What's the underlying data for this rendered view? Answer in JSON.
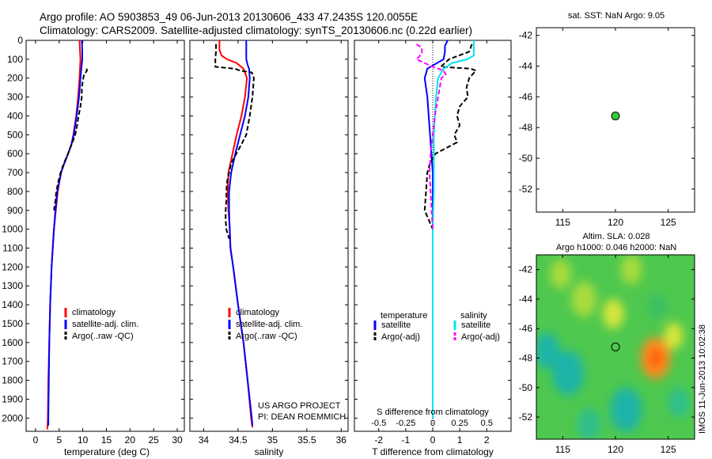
{
  "header": {
    "line1": "Argo profile: AO 5903853_49 06-Jun-2013 20130606_433 47.2435S 120.0055E",
    "line2": "Climatology: CARS2009. Satellite-adjusted climatology: synTS_20130606.nc (0.22d earlier)"
  },
  "colors": {
    "climatology": "#ff0000",
    "satellite": "#0000ff",
    "argo": "#000000",
    "sal_satellite": "#00e5ee",
    "sal_argo": "#ff00ff",
    "float_marker": "#33cc33"
  },
  "depth_axis": {
    "ticks": [
      "0",
      "100",
      "200",
      "300",
      "400",
      "500",
      "600",
      "700",
      "800",
      "900",
      "1000",
      "1100",
      "1200",
      "1300",
      "1400",
      "1500",
      "1600",
      "1700",
      "1800",
      "1900",
      "2000"
    ]
  },
  "chart_data": [
    {
      "type": "line",
      "id": "temperature",
      "xlabel": "temperature (deg C)",
      "xlim": [
        -2,
        31.5
      ],
      "ylim": [
        2070,
        0
      ],
      "xticks": [
        "0",
        "5",
        "10",
        "15",
        "20",
        "25",
        "30"
      ],
      "legend": [
        "climatology",
        "satellite-adj. clim.",
        "Argo(..raw -QC)"
      ],
      "series": [
        {
          "name": "climatology",
          "depth": [
            0,
            50,
            100,
            150,
            200,
            300,
            400,
            500,
            550,
            600,
            650,
            700,
            800,
            900,
            1000,
            1200,
            1400,
            1600,
            1800,
            2000,
            2060
          ],
          "values": [
            9.3,
            9.4,
            9.5,
            9.4,
            9.3,
            9.0,
            8.6,
            8.0,
            7.6,
            6.9,
            6.1,
            5.4,
            4.7,
            4.3,
            3.9,
            3.4,
            3.1,
            2.9,
            2.7,
            2.6,
            2.5
          ]
        },
        {
          "name": "satellite-adj. clim.",
          "depth": [
            0,
            50,
            100,
            150,
            200,
            300,
            400,
            500,
            550,
            600,
            650,
            700,
            800,
            900,
            1000,
            1200,
            1400,
            1600,
            1800,
            2000,
            2040
          ],
          "values": [
            9.8,
            9.9,
            9.9,
            9.7,
            9.5,
            9.2,
            8.7,
            8.1,
            7.6,
            6.9,
            6.1,
            5.4,
            4.6,
            4.2,
            3.9,
            3.4,
            3.1,
            2.9,
            2.8,
            2.7,
            2.7
          ]
        },
        {
          "name": "Argo(..raw -QC)",
          "depth": [
            150,
            160,
            180,
            200,
            250,
            300,
            350,
            400,
            450,
            500,
            560,
            600,
            650,
            700,
            750,
            800,
            850,
            900
          ],
          "values": [
            10.8,
            10.9,
            10.3,
            10.1,
            9.8,
            9.8,
            9.5,
            9.1,
            8.8,
            8.4,
            7.5,
            6.9,
            6.0,
            5.3,
            4.8,
            4.4,
            4.2,
            3.9
          ]
        }
      ]
    },
    {
      "type": "line",
      "id": "salinity",
      "xlabel": "salinity",
      "xlim": [
        33.8,
        36.1
      ],
      "ylim": [
        2070,
        0
      ],
      "xticks": [
        "34",
        "34.5",
        "35",
        "35.5",
        "36"
      ],
      "legend": [
        "climatology",
        "satellite-adj. clim.",
        "Argo(..raw -QC)"
      ],
      "annotation": [
        "US ARGO PROJECT",
        "PI: DEAN ROEMMICH"
      ],
      "series": [
        {
          "name": "climatology",
          "depth": [
            0,
            50,
            80,
            100,
            120,
            150,
            200,
            300,
            400,
            500,
            600,
            700,
            800,
            900,
            950,
            1000,
            1100,
            1200,
            1400,
            1600,
            1800,
            2000,
            2050
          ],
          "values": [
            34.23,
            34.23,
            34.26,
            34.34,
            34.48,
            34.58,
            34.63,
            34.6,
            34.55,
            34.48,
            34.42,
            34.36,
            34.35,
            34.36,
            34.37,
            34.38,
            34.39,
            34.43,
            34.5,
            34.58,
            34.64,
            34.69,
            34.71
          ]
        },
        {
          "name": "satellite-adj. clim.",
          "depth": [
            0,
            50,
            100,
            130,
            150,
            200,
            300,
            400,
            500,
            600,
            700,
            800,
            900,
            1000,
            1100,
            1200,
            1400,
            1600,
            1800,
            2000,
            2040
          ],
          "values": [
            34.62,
            34.62,
            34.62,
            34.64,
            34.66,
            34.67,
            34.65,
            34.6,
            34.53,
            34.46,
            34.4,
            34.37,
            34.37,
            34.38,
            34.39,
            34.43,
            34.5,
            34.58,
            34.64,
            34.7,
            34.71
          ]
        },
        {
          "name": "Argo(..raw -QC)",
          "depth": [
            20,
            60,
            100,
            140,
            150,
            160,
            170,
            200,
            250,
            300,
            400,
            500,
            550,
            650,
            700,
            750,
            800,
            850,
            900,
            950,
            1000,
            1050
          ],
          "values": [
            34.18,
            34.18,
            34.17,
            34.17,
            34.45,
            34.53,
            34.7,
            34.73,
            34.72,
            34.71,
            34.67,
            34.62,
            34.55,
            34.4,
            34.37,
            34.34,
            34.33,
            34.33,
            34.32,
            34.32,
            34.33,
            34.37
          ]
        }
      ]
    },
    {
      "type": "line",
      "id": "differences",
      "xlabel": "T difference from climatology",
      "xlim": [
        -2.9,
        2.9
      ],
      "ylim": [
        2070,
        0
      ],
      "xticks": [
        "-2",
        "-1",
        "0",
        "1",
        "2"
      ],
      "x2label": "S difference from climatology",
      "x2ticks": [
        "-0.5",
        "-0.25",
        "0",
        "0.25",
        "0.5"
      ],
      "x2lim": [
        -0.725,
        0.725
      ],
      "legend_titles": [
        "temperature",
        "salinity"
      ],
      "legend": [
        "satellite",
        "Argo(-adj)",
        "satellite",
        "Argo(-adj)"
      ],
      "series": [
        {
          "name": "temperature satellite",
          "depth": [
            0,
            30,
            60,
            100,
            150,
            200,
            300,
            400,
            500,
            600,
            700,
            800,
            1000,
            1200,
            1500,
            1800,
            2000
          ],
          "values": [
            0.55,
            0.45,
            0.45,
            0.4,
            -0.2,
            -0.3,
            -0.2,
            -0.15,
            -0.1,
            -0.05,
            0.0,
            0.0,
            0.0,
            0.0,
            0.0,
            0.0,
            0.0
          ]
        },
        {
          "name": "temperature Argo(-adj)",
          "depth": [
            20,
            60,
            100,
            140,
            150,
            160,
            200,
            250,
            300,
            350,
            400,
            450,
            500,
            540,
            600,
            650,
            700,
            800,
            900,
            1000
          ],
          "values": [
            1.45,
            1.35,
            0.6,
            0.3,
            1.4,
            1.6,
            1.35,
            1.25,
            1.3,
            1.0,
            0.9,
            1.0,
            0.8,
            0.9,
            0.1,
            -0.1,
            -0.2,
            -0.25,
            -0.3,
            0.0
          ]
        },
        {
          "name": "salinity satellite",
          "depth": [
            0,
            40,
            80,
            100,
            120,
            150,
            200,
            300,
            400,
            500,
            600,
            800,
            1000,
            1300,
            1600,
            1800,
            2000
          ],
          "values": [
            0.38,
            0.38,
            0.38,
            0.32,
            0.18,
            0.1,
            0.05,
            0.03,
            0.02,
            0.01,
            0.01,
            0.01,
            0.0,
            0.0,
            0.0,
            0.0,
            0.0
          ]
        },
        {
          "name": "salinity Argo(-adj)",
          "depth": [
            20,
            40,
            70,
            100,
            140,
            160,
            180,
            200,
            300,
            400,
            500,
            600,
            700,
            800,
            900,
            1000
          ],
          "values": [
            -0.15,
            -0.1,
            -0.1,
            -0.15,
            0.0,
            0.1,
            0.12,
            0.08,
            0.05,
            0.02,
            0.0,
            -0.02,
            -0.03,
            -0.02,
            -0.01,
            0.0
          ]
        }
      ]
    },
    {
      "type": "scatter",
      "id": "sst-map",
      "title": "sat. SST: NaN Argo: 9.05",
      "xlim": [
        112.5,
        127.5
      ],
      "ylim": [
        -53.5,
        -41.5
      ],
      "xticks": [
        "115",
        "120",
        "125"
      ],
      "yticks": [
        "-42",
        "-44",
        "-46",
        "-48",
        "-50",
        "-52"
      ],
      "points": [
        {
          "lon": 120.0,
          "lat": -47.24
        }
      ]
    },
    {
      "type": "heatmap",
      "id": "sla-map",
      "title_lines": [
        "Altim. SLA: 0.028",
        "Argo h1000: 0.046 h2000: NaN"
      ],
      "side_label": "IMOS 11-Jun-2013 10:02:38",
      "xlim": [
        112.5,
        127.5
      ],
      "ylim": [
        -53.5,
        -41.0
      ],
      "xticks": [
        "115",
        "120",
        "125"
      ],
      "yticks": [
        "-42",
        "-44",
        "-46",
        "-48",
        "-50",
        "-52"
      ],
      "points": [
        {
          "lon": 120.0,
          "lat": -47.24
        }
      ],
      "blobs": [
        {
          "lon": 123.8,
          "lat": -48.0,
          "r": 1.4,
          "v": 1.0
        },
        {
          "lon": 125.5,
          "lat": -46.5,
          "r": 0.9,
          "v": 0.35
        },
        {
          "lon": 119.8,
          "lat": -45.0,
          "r": 1.0,
          "v": 0.35
        },
        {
          "lon": 114.8,
          "lat": -42.3,
          "r": 1.0,
          "v": 0.25
        },
        {
          "lon": 117.0,
          "lat": -44.0,
          "r": 1.2,
          "v": 0.2
        },
        {
          "lon": 121.5,
          "lat": -42.0,
          "r": 1.0,
          "v": 0.2
        },
        {
          "lon": 115.5,
          "lat": -49.0,
          "r": 1.5,
          "v": -0.45
        },
        {
          "lon": 113.5,
          "lat": -47.5,
          "r": 1.2,
          "v": -0.4
        },
        {
          "lon": 121.0,
          "lat": -51.5,
          "r": 1.5,
          "v": -0.45
        },
        {
          "lon": 117.5,
          "lat": -52.5,
          "r": 1.1,
          "v": -0.35
        },
        {
          "lon": 126.0,
          "lat": -51.0,
          "r": 1.0,
          "v": -0.3
        },
        {
          "lon": 124.0,
          "lat": -44.5,
          "r": 0.9,
          "v": -0.15
        }
      ]
    }
  ]
}
